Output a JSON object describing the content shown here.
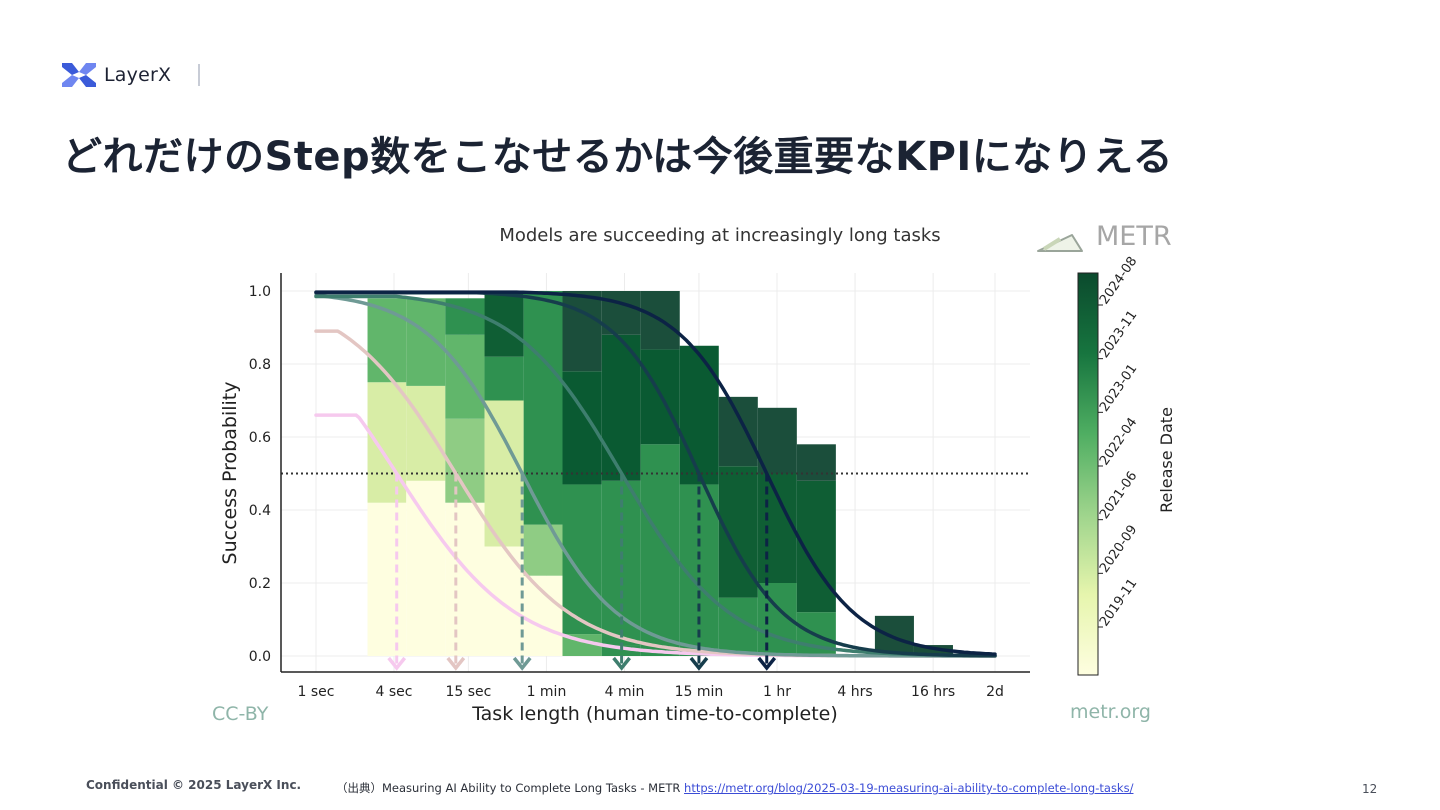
{
  "header": {
    "logo_text": "LayerX",
    "title": "どれだけのStep数をこなせるかは今後重要なKPIになりえる"
  },
  "figure": {
    "brand": "METR",
    "license": "CC-BY",
    "site": "metr.org"
  },
  "chart_data": {
    "type": "line",
    "title": "Models are succeeding at increasingly long tasks",
    "xlabel": "Task length (human time-to-complete)",
    "ylabel": "Success Probability",
    "x_scale": "log",
    "x_ticks": [
      {
        "label": "1 sec",
        "minutes": 0.0167
      },
      {
        "label": "4 sec",
        "minutes": 0.0667
      },
      {
        "label": "15 sec",
        "minutes": 0.25
      },
      {
        "label": "1 min",
        "minutes": 1
      },
      {
        "label": "4 min",
        "minutes": 4
      },
      {
        "label": "15 min",
        "minutes": 15
      },
      {
        "label": "1 hr",
        "minutes": 60
      },
      {
        "label": "4 hrs",
        "minutes": 240
      },
      {
        "label": "16 hrs",
        "minutes": 960
      },
      {
        "label": "2d",
        "minutes": 2880
      }
    ],
    "y_ticks": [
      "0.0",
      "0.2",
      "0.4",
      "0.6",
      "0.8",
      "1.0"
    ],
    "ylim": [
      0,
      1.05
    ],
    "threshold": 0.5,
    "grid": true,
    "colorbar": {
      "label": "Release Date",
      "ticks": [
        "2019-11",
        "2020-09",
        "2021-06",
        "2022-04",
        "2023-01",
        "2023-11",
        "2024-08"
      ]
    },
    "series": [
      {
        "color": "#f6c9ee",
        "p50_minutes": 0.07,
        "slope": 0.95,
        "y_start": 0.66
      },
      {
        "color": "#e3c6c3",
        "p50_minutes": 0.2,
        "slope": 1.0,
        "y_start": 0.89
      },
      {
        "color": "#6f9a95",
        "p50_minutes": 0.65,
        "slope": 1.2,
        "y_start": 0.99
      },
      {
        "color": "#3e7e6e",
        "p50_minutes": 3.8,
        "slope": 1.05,
        "y_start": 0.985
      },
      {
        "color": "#163d4c",
        "p50_minutes": 15,
        "slope": 1.35,
        "y_start": 0.995
      },
      {
        "color": "#0c2345",
        "p50_minutes": 50,
        "slope": 1.3,
        "y_start": 0.997
      }
    ],
    "bins": [
      {
        "x0": 0.0417,
        "x1": 0.083,
        "stack": [
          [
            0.0,
            0.42,
            "#fefee0"
          ],
          [
            0.42,
            0.75,
            "#d8eda6"
          ],
          [
            0.75,
            0.98,
            "#61b66b"
          ]
        ]
      },
      {
        "x0": 0.083,
        "x1": 0.166,
        "stack": [
          [
            0.0,
            0.48,
            "#fefee0"
          ],
          [
            0.48,
            0.74,
            "#d8eda6"
          ],
          [
            0.74,
            0.98,
            "#61b66b"
          ]
        ]
      },
      {
        "x0": 0.166,
        "x1": 0.333,
        "stack": [
          [
            0.0,
            0.42,
            "#fefee0"
          ],
          [
            0.42,
            0.65,
            "#8fcc84"
          ],
          [
            0.65,
            0.88,
            "#61b66b"
          ],
          [
            0.88,
            0.98,
            "#2f9150"
          ]
        ]
      },
      {
        "x0": 0.333,
        "x1": 0.667,
        "stack": [
          [
            0.0,
            0.3,
            "#fefee0"
          ],
          [
            0.3,
            0.7,
            "#d8eda6"
          ],
          [
            0.7,
            0.82,
            "#2f9150"
          ],
          [
            0.82,
            1.0,
            "#0f5e34"
          ]
        ]
      },
      {
        "x0": 0.667,
        "x1": 1.33,
        "stack": [
          [
            0.0,
            0.22,
            "#fefee0"
          ],
          [
            0.22,
            0.36,
            "#8fcc84"
          ],
          [
            0.36,
            1.0,
            "#2f9150"
          ]
        ]
      },
      {
        "x0": 1.33,
        "x1": 2.67,
        "stack": [
          [
            0.0,
            0.06,
            "#61b66b"
          ],
          [
            0.06,
            0.47,
            "#2f9150"
          ],
          [
            0.47,
            0.78,
            "#0a5a32"
          ],
          [
            0.78,
            1.0,
            "#1b4e3b"
          ]
        ]
      },
      {
        "x0": 2.67,
        "x1": 5.33,
        "stack": [
          [
            0.0,
            0.03,
            "#2f9150"
          ],
          [
            0.03,
            0.48,
            "#2f9150"
          ],
          [
            0.48,
            0.88,
            "#0a5a32"
          ],
          [
            0.88,
            1.0,
            "#1b4e3b"
          ]
        ]
      },
      {
        "x0": 5.33,
        "x1": 10.67,
        "stack": [
          [
            0.0,
            0.58,
            "#2f9150"
          ],
          [
            0.58,
            0.84,
            "#0a5a32"
          ],
          [
            0.84,
            1.0,
            "#1b4e3b"
          ]
        ]
      },
      {
        "x0": 10.67,
        "x1": 21.33,
        "stack": [
          [
            0.0,
            0.47,
            "#2f9150"
          ],
          [
            0.47,
            0.85,
            "#0a5a32"
          ]
        ]
      },
      {
        "x0": 21.33,
        "x1": 42.67,
        "stack": [
          [
            0.0,
            0.16,
            "#2f9150"
          ],
          [
            0.16,
            0.52,
            "#0f5e34"
          ],
          [
            0.52,
            0.71,
            "#1b4e3b"
          ]
        ]
      },
      {
        "x0": 42.67,
        "x1": 85.33,
        "stack": [
          [
            0.0,
            0.2,
            "#2f9150"
          ],
          [
            0.2,
            0.5,
            "#0f5e34"
          ],
          [
            0.5,
            0.68,
            "#1b4e3b"
          ]
        ]
      },
      {
        "x0": 85.33,
        "x1": 170.67,
        "stack": [
          [
            0.0,
            0.12,
            "#2f9150"
          ],
          [
            0.12,
            0.48,
            "#0f5e34"
          ],
          [
            0.48,
            0.58,
            "#1b4e3b"
          ]
        ]
      },
      {
        "x0": 341.33,
        "x1": 682.67,
        "stack": [
          [
            0.0,
            0.11,
            "#1b4e3b"
          ]
        ]
      },
      {
        "x0": 682.67,
        "x1": 1365.33,
        "stack": [
          [
            0.0,
            0.03,
            "#1b4e3b"
          ]
        ]
      }
    ]
  },
  "footer": {
    "confidential": "Confidential © 2025 LayerX Inc.",
    "source_prefix": "（出典）Measuring AI Ability to Complete Long Tasks - METR",
    "source_url": "https://metr.org/blog/2025-03-19-measuring-ai-ability-to-complete-long-tasks/",
    "page": "12"
  }
}
